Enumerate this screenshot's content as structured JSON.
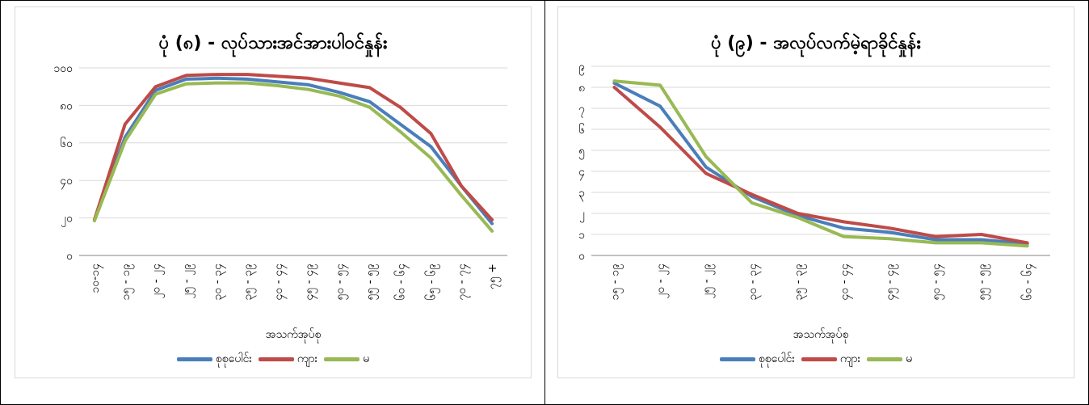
{
  "colors": {
    "total": "#4a7ebb",
    "male": "#be4b48",
    "female": "#98b954"
  },
  "legend": [
    "စုစုပေါင်း",
    "ကျား",
    "မ"
  ],
  "chart_data": [
    {
      "type": "line",
      "title": "ပုံ (၈) - လုပ်သားအင်အားပါဝင်နှုန်း",
      "xlabel": "အသက်အုပ်စု",
      "ylabel": "",
      "ylim": [
        0,
        100
      ],
      "yticks": [
        "၀",
        "၂၀",
        "၄၀",
        "၆၀",
        "၈၀",
        "၁၀၀"
      ],
      "categories": [
        "၁၀-၁၄",
        "၁၅ - ၁၉",
        "၂၀ - ၂၄",
        "၂၅ - ၂၉",
        "၃၀ - ၃၄",
        "၃၅ - ၃၉",
        "၄၀ - ၄၄",
        "၄၅ - ၄၉",
        "၅၀ - ၅၄",
        "၅၅ - ၅၉",
        "၆၀ - ၆၄",
        "၆၅ - ၆၉",
        "၇၀ - ၇၄",
        "၇၅ +"
      ],
      "series": [
        {
          "name": "စုစုပေါင်း",
          "values": [
            19,
            63,
            88,
            94,
            94.5,
            94,
            92.5,
            91,
            87,
            82,
            70,
            58,
            37,
            17
          ]
        },
        {
          "name": "ကျား",
          "values": [
            19,
            70,
            90,
            96,
            96.5,
            96.5,
            95.5,
            94.5,
            92,
            89.5,
            79,
            65,
            37,
            19
          ]
        },
        {
          "name": "မ",
          "values": [
            18.5,
            61,
            86,
            91.5,
            92,
            92,
            90.5,
            88.5,
            85,
            79,
            66,
            52,
            32,
            13
          ]
        }
      ]
    },
    {
      "type": "line",
      "title": "ပုံ (၉) - အလုပ်လက်မဲ့ရာခိုင်နှုန်း",
      "xlabel": "အသက်အုပ်စု",
      "ylabel": "",
      "ylim": [
        0,
        9
      ],
      "yticks": [
        "၀",
        "၁",
        "၂",
        "၃",
        "၄",
        "၅",
        "၆",
        "၇",
        "၈",
        "၉"
      ],
      "categories": [
        "၁၅ - ၁၉",
        "၂၀ - ၂၄",
        "၂၅ - ၂၉",
        "၃၀ - ၃၄",
        "၃၅ - ၃၉",
        "၄၀ - ၄၄",
        "၄၅ - ၄၉",
        "၅၀ - ၅၄",
        "၅၅ - ၅၉",
        "၆၀ - ၆၄"
      ],
      "series": [
        {
          "name": "စုစုပေါင်း",
          "values": [
            8.2,
            7.1,
            4.2,
            2.8,
            1.9,
            1.3,
            1.1,
            0.75,
            0.75,
            0.55
          ]
        },
        {
          "name": "ကျား",
          "values": [
            8.0,
            6.1,
            3.9,
            2.9,
            2.0,
            1.6,
            1.3,
            0.9,
            1.0,
            0.6
          ]
        },
        {
          "name": "မ",
          "values": [
            8.3,
            8.1,
            4.7,
            2.5,
            1.8,
            0.9,
            0.8,
            0.6,
            0.6,
            0.45
          ]
        }
      ]
    }
  ]
}
